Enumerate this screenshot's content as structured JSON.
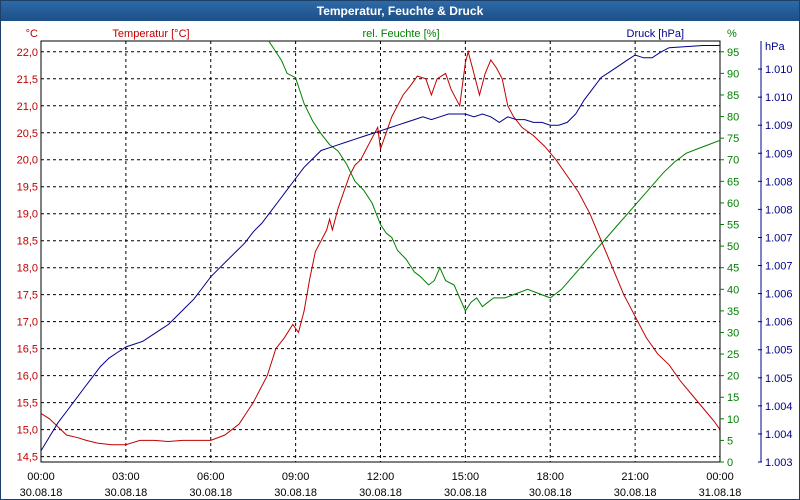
{
  "window": {
    "title": "Temperatur, Feuchte & Druck"
  },
  "chart_data": {
    "type": "line",
    "title": "Temperatur, Feuchte & Druck",
    "grid": true,
    "x_range": [
      "30.08.18 00:00",
      "31.08.18 00:00"
    ],
    "x_ticks": [
      {
        "time": "00:00",
        "date": "30.08.18"
      },
      {
        "time": "03:00",
        "date": "30.08.18"
      },
      {
        "time": "06:00",
        "date": "30.08.18"
      },
      {
        "time": "09:00",
        "date": "30.08.18"
      },
      {
        "time": "12:00",
        "date": "30.08.18"
      },
      {
        "time": "15:00",
        "date": "30.08.18"
      },
      {
        "time": "18:00",
        "date": "30.08.18"
      },
      {
        "time": "21:00",
        "date": "30.08.18"
      },
      {
        "time": "00:00",
        "date": "31.08.18"
      }
    ],
    "axes": {
      "left": {
        "unit": "°C",
        "label": "Temperatur [°C]",
        "color": "#c00000",
        "range": [
          14.4,
          22.2
        ],
        "ticks": [
          "14,5",
          "15,0",
          "15,5",
          "16,0",
          "16,5",
          "17,0",
          "17,5",
          "18,0",
          "18,5",
          "19,0",
          "19,5",
          "20,0",
          "20,5",
          "21,0",
          "21,5",
          "22,0"
        ]
      },
      "middle": {
        "unit": "%",
        "label": "rel. Feuchte [%]",
        "color": "#008000",
        "range": [
          0,
          97.5
        ],
        "ticks": [
          "0",
          "5",
          "10",
          "15",
          "20",
          "25",
          "30",
          "35",
          "40",
          "45",
          "50",
          "55",
          "60",
          "65",
          "70",
          "75",
          "80",
          "85",
          "90",
          "95"
        ]
      },
      "right": {
        "unit": "hPa",
        "label": "Druck [hPa]",
        "color": "#00008b",
        "range": [
          1003.0,
          1010.5
        ],
        "ticks": [
          "1.003",
          "1.004",
          "1.004",
          "1.005",
          "1.005",
          "1.006",
          "1.006",
          "1.007",
          "1.007",
          "1.008",
          "1.008",
          "1.009",
          "1.009",
          "1.010",
          "1.010"
        ]
      }
    },
    "series": [
      {
        "name": "Temperatur [°C]",
        "color": "#c00000",
        "axis": "left",
        "points": [
          [
            0,
            15.3
          ],
          [
            0.3,
            15.2
          ],
          [
            0.6,
            15.05
          ],
          [
            0.9,
            14.9
          ],
          [
            1.3,
            14.85
          ],
          [
            1.6,
            14.8
          ],
          [
            2,
            14.75
          ],
          [
            2.5,
            14.72
          ],
          [
            3,
            14.72
          ],
          [
            3.5,
            14.8
          ],
          [
            4,
            14.8
          ],
          [
            4.5,
            14.78
          ],
          [
            5,
            14.8
          ],
          [
            5.5,
            14.8
          ],
          [
            6,
            14.8
          ],
          [
            6.5,
            14.9
          ],
          [
            7,
            15.1
          ],
          [
            7.5,
            15.5
          ],
          [
            8,
            16.0
          ],
          [
            8.3,
            16.5
          ],
          [
            8.6,
            16.7
          ],
          [
            8.9,
            16.95
          ],
          [
            9.1,
            16.8
          ],
          [
            9.3,
            17.2
          ],
          [
            9.5,
            17.8
          ],
          [
            9.7,
            18.3
          ],
          [
            9.9,
            18.5
          ],
          [
            10.1,
            18.7
          ],
          [
            10.2,
            18.9
          ],
          [
            10.3,
            18.7
          ],
          [
            10.5,
            19.1
          ],
          [
            10.7,
            19.4
          ],
          [
            10.9,
            19.7
          ],
          [
            11.1,
            19.9
          ],
          [
            11.3,
            20.0
          ],
          [
            11.5,
            20.2
          ],
          [
            11.7,
            20.4
          ],
          [
            11.9,
            20.6
          ],
          [
            12.0,
            20.2
          ],
          [
            12.2,
            20.5
          ],
          [
            12.4,
            20.8
          ],
          [
            12.6,
            21.0
          ],
          [
            12.8,
            21.2
          ],
          [
            13.1,
            21.4
          ],
          [
            13.3,
            21.55
          ],
          [
            13.6,
            21.5
          ],
          [
            13.8,
            21.2
          ],
          [
            14.0,
            21.5
          ],
          [
            14.3,
            21.6
          ],
          [
            14.5,
            21.3
          ],
          [
            14.8,
            21.0
          ],
          [
            15.0,
            21.8
          ],
          [
            15.1,
            22.0
          ],
          [
            15.3,
            21.6
          ],
          [
            15.5,
            21.2
          ],
          [
            15.7,
            21.6
          ],
          [
            15.9,
            21.85
          ],
          [
            16.1,
            21.7
          ],
          [
            16.3,
            21.5
          ],
          [
            16.5,
            21.0
          ],
          [
            16.7,
            20.8
          ],
          [
            17,
            20.6
          ],
          [
            17.4,
            20.45
          ],
          [
            17.8,
            20.25
          ],
          [
            18.2,
            20.0
          ],
          [
            18.6,
            19.7
          ],
          [
            19,
            19.4
          ],
          [
            19.4,
            19.0
          ],
          [
            19.8,
            18.5
          ],
          [
            20.2,
            18.0
          ],
          [
            20.6,
            17.5
          ],
          [
            21,
            17.1
          ],
          [
            21.4,
            16.7
          ],
          [
            21.8,
            16.4
          ],
          [
            22.2,
            16.2
          ],
          [
            22.6,
            15.9
          ],
          [
            23,
            15.65
          ],
          [
            23.4,
            15.4
          ],
          [
            23.8,
            15.15
          ],
          [
            24,
            15.0
          ]
        ]
      },
      {
        "name": "rel. Feuchte [%]",
        "color": "#008000",
        "axis": "middle",
        "points": [
          [
            7.8,
            100
          ],
          [
            8.2,
            96
          ],
          [
            8.5,
            93
          ],
          [
            8.7,
            90
          ],
          [
            9.0,
            89
          ],
          [
            9.3,
            83
          ],
          [
            9.6,
            79
          ],
          [
            9.9,
            76
          ],
          [
            10.2,
            73.5
          ],
          [
            10.5,
            72
          ],
          [
            10.8,
            69
          ],
          [
            11.1,
            65
          ],
          [
            11.4,
            63
          ],
          [
            11.7,
            60
          ],
          [
            12.0,
            55
          ],
          [
            12.2,
            53
          ],
          [
            12.4,
            52
          ],
          [
            12.6,
            49
          ],
          [
            12.9,
            47
          ],
          [
            13.2,
            44
          ],
          [
            13.4,
            43
          ],
          [
            13.7,
            41
          ],
          [
            13.9,
            42
          ],
          [
            14.1,
            45
          ],
          [
            14.3,
            42
          ],
          [
            14.6,
            41
          ],
          [
            14.8,
            38
          ],
          [
            15.0,
            35
          ],
          [
            15.2,
            37
          ],
          [
            15.4,
            38
          ],
          [
            15.6,
            36
          ],
          [
            15.8,
            37
          ],
          [
            16.0,
            38
          ],
          [
            16.4,
            38
          ],
          [
            16.8,
            39
          ],
          [
            17.2,
            40
          ],
          [
            17.6,
            39
          ],
          [
            18.0,
            38
          ],
          [
            18.4,
            40
          ],
          [
            18.8,
            43
          ],
          [
            19.2,
            46
          ],
          [
            19.6,
            49
          ],
          [
            20.0,
            52
          ],
          [
            20.4,
            55
          ],
          [
            20.8,
            58
          ],
          [
            21.2,
            61
          ],
          [
            21.6,
            64
          ],
          [
            22.0,
            67
          ],
          [
            22.4,
            69.5
          ],
          [
            22.8,
            71.5
          ],
          [
            23.2,
            72.5
          ],
          [
            23.6,
            73.5
          ],
          [
            24,
            74.5
          ]
        ]
      },
      {
        "name": "Druck [hPa]",
        "color": "#00008b",
        "axis": "right",
        "points": [
          [
            0,
            1003.2
          ],
          [
            0.3,
            1003.45
          ],
          [
            0.6,
            1003.7
          ],
          [
            0.9,
            1003.9
          ],
          [
            1.2,
            1004.1
          ],
          [
            1.5,
            1004.3
          ],
          [
            1.8,
            1004.5
          ],
          [
            2.1,
            1004.7
          ],
          [
            2.4,
            1004.85
          ],
          [
            2.7,
            1004.95
          ],
          [
            3.0,
            1005.05
          ],
          [
            3.3,
            1005.1
          ],
          [
            3.6,
            1005.15
          ],
          [
            3.9,
            1005.25
          ],
          [
            4.2,
            1005.35
          ],
          [
            4.5,
            1005.45
          ],
          [
            4.8,
            1005.6
          ],
          [
            5.1,
            1005.75
          ],
          [
            5.4,
            1005.9
          ],
          [
            5.7,
            1006.1
          ],
          [
            6.0,
            1006.3
          ],
          [
            6.3,
            1006.45
          ],
          [
            6.6,
            1006.6
          ],
          [
            6.9,
            1006.75
          ],
          [
            7.2,
            1006.9
          ],
          [
            7.5,
            1007.1
          ],
          [
            7.8,
            1007.25
          ],
          [
            8.1,
            1007.45
          ],
          [
            8.4,
            1007.65
          ],
          [
            8.7,
            1007.85
          ],
          [
            9.0,
            1008.05
          ],
          [
            9.3,
            1008.25
          ],
          [
            9.6,
            1008.4
          ],
          [
            9.9,
            1008.55
          ],
          [
            10.2,
            1008.6
          ],
          [
            10.5,
            1008.65
          ],
          [
            10.8,
            1008.7
          ],
          [
            11.1,
            1008.75
          ],
          [
            11.4,
            1008.8
          ],
          [
            11.7,
            1008.85
          ],
          [
            12.0,
            1008.9
          ],
          [
            12.3,
            1008.95
          ],
          [
            12.6,
            1009.0
          ],
          [
            12.9,
            1009.05
          ],
          [
            13.2,
            1009.1
          ],
          [
            13.5,
            1009.15
          ],
          [
            13.8,
            1009.1
          ],
          [
            14.1,
            1009.15
          ],
          [
            14.4,
            1009.2
          ],
          [
            14.7,
            1009.2
          ],
          [
            15.0,
            1009.2
          ],
          [
            15.3,
            1009.15
          ],
          [
            15.6,
            1009.2
          ],
          [
            15.9,
            1009.15
          ],
          [
            16.2,
            1009.05
          ],
          [
            16.5,
            1009.15
          ],
          [
            16.8,
            1009.1
          ],
          [
            17.1,
            1009.1
          ],
          [
            17.4,
            1009.05
          ],
          [
            17.7,
            1009.05
          ],
          [
            18.0,
            1009.0
          ],
          [
            18.3,
            1009.0
          ],
          [
            18.6,
            1009.05
          ],
          [
            18.9,
            1009.2
          ],
          [
            19.2,
            1009.45
          ],
          [
            19.5,
            1009.65
          ],
          [
            19.8,
            1009.85
          ],
          [
            20.1,
            1009.95
          ],
          [
            20.4,
            1010.05
          ],
          [
            20.7,
            1010.15
          ],
          [
            21.0,
            1010.25
          ],
          [
            21.3,
            1010.2
          ],
          [
            21.6,
            1010.2
          ],
          [
            21.9,
            1010.3
          ],
          [
            22.2,
            1010.38
          ],
          [
            22.8,
            1010.4
          ],
          [
            23.4,
            1010.42
          ],
          [
            24,
            1010.42
          ]
        ]
      }
    ]
  }
}
